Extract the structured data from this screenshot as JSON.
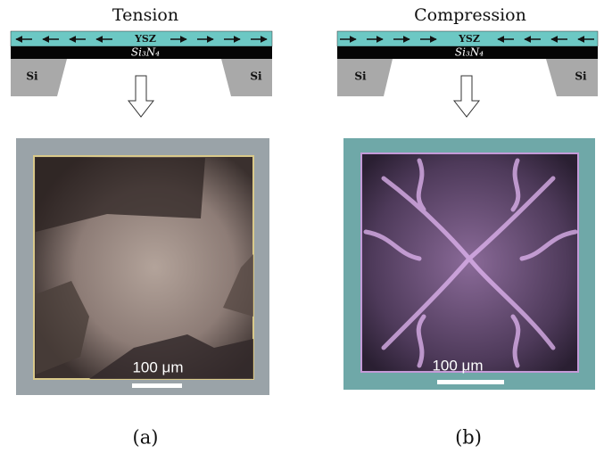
{
  "panels": [
    {
      "title": "Tension",
      "layer_top": "YSZ",
      "layer_bottom": "Si₃N₄",
      "support_left": "Si",
      "support_right": "Si",
      "scale_bar": "100 μm",
      "caption": "(a)"
    },
    {
      "title": "Compression",
      "layer_top": "YSZ",
      "layer_bottom": "Si₃N₄",
      "support_left": "Si",
      "support_right": "Si",
      "scale_bar": "100 μm",
      "caption": "(b)"
    }
  ]
}
